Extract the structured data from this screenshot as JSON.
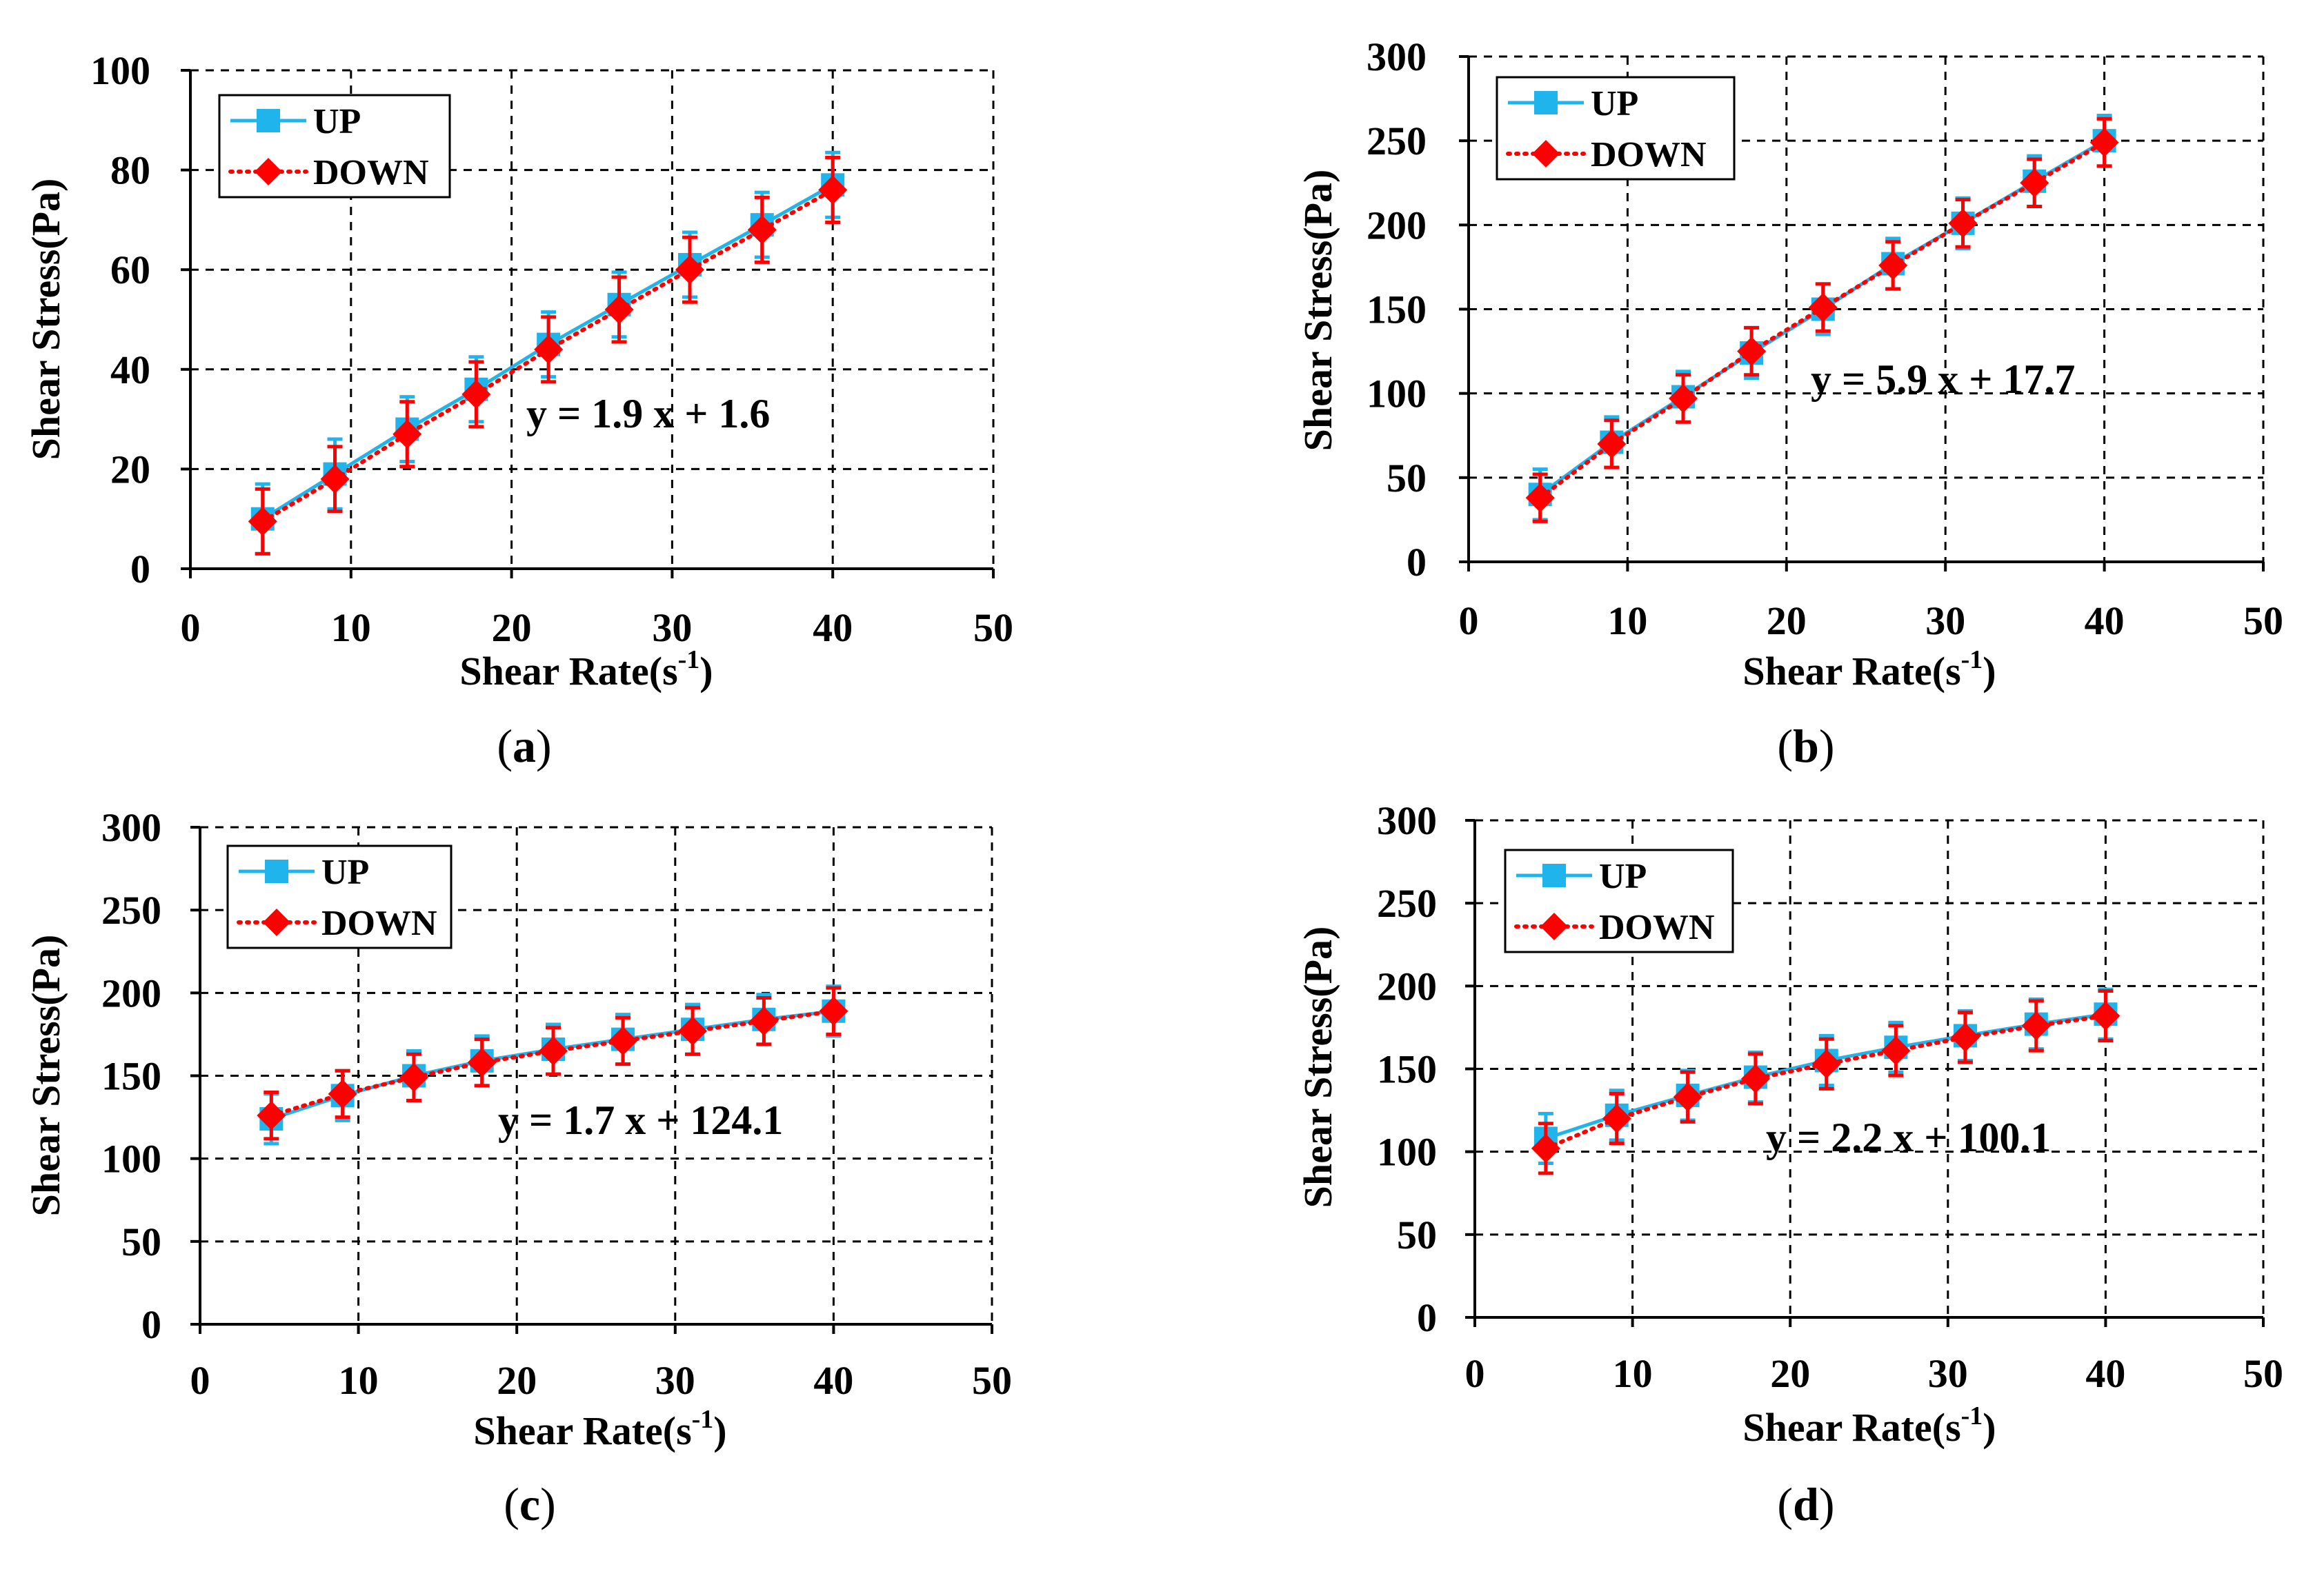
{
  "colors": {
    "up": "#1fb4ec",
    "down": "#ff0000",
    "error_up": "#1fb4ec",
    "error_down": "#ff0000",
    "grid": "#000000"
  },
  "chart_data": [
    {
      "type": "line",
      "caption": "(a)",
      "caption_letter": "a",
      "xlabel": "Shear Rate(s",
      "xlabel_sup": "-1",
      "xlabel_close": ")",
      "ylabel": "Shear Stress(Pa)",
      "xlim": [
        0,
        50
      ],
      "ylim": [
        0,
        100
      ],
      "xticks": [
        0,
        10,
        20,
        30,
        40,
        50
      ],
      "yticks": [
        0,
        20,
        40,
        60,
        80,
        100
      ],
      "grid": true,
      "legend_position": "top-left",
      "equation": "y = 1.9 x + 1.6",
      "x": [
        4.5,
        9,
        13.5,
        17.8,
        22.3,
        26.7,
        31.1,
        35.6,
        40
      ],
      "series": [
        {
          "name": "UP",
          "marker": "square",
          "line": "solid",
          "values": [
            10,
            19,
            28,
            36,
            45,
            53,
            61,
            69,
            77
          ],
          "errors": [
            7,
            7,
            6.5,
            6.5,
            6.5,
            6.5,
            6.5,
            6.5,
            6.5
          ]
        },
        {
          "name": "DOWN",
          "marker": "diamond",
          "line": "dotted",
          "values": [
            9.5,
            18,
            27,
            35,
            44,
            52,
            60,
            68,
            76
          ],
          "errors": [
            6.5,
            6.5,
            6.5,
            6.5,
            6.5,
            6.5,
            6.5,
            6.5,
            6.5
          ]
        }
      ]
    },
    {
      "type": "line",
      "caption": "(b)",
      "caption_letter": "b",
      "xlabel": "Shear Rate(s",
      "xlabel_sup": "-1",
      "xlabel_close": ")",
      "ylabel": "Shear Stress(Pa)",
      "xlim": [
        0,
        50
      ],
      "ylim": [
        0,
        300
      ],
      "xticks": [
        0,
        10,
        20,
        30,
        40,
        50
      ],
      "yticks": [
        0,
        50,
        100,
        150,
        200,
        250,
        300
      ],
      "grid": true,
      "legend_position": "top-left",
      "equation": "y = 5.9 x + 17.7",
      "x": [
        4.5,
        9,
        13.5,
        17.8,
        22.3,
        26.7,
        31.1,
        35.6,
        40
      ],
      "series": [
        {
          "name": "UP",
          "marker": "square",
          "line": "solid",
          "values": [
            40,
            71,
            98,
            124,
            150,
            177,
            201,
            226,
            250
          ],
          "errors": [
            15,
            15,
            15,
            15,
            15,
            15,
            15,
            15,
            15
          ]
        },
        {
          "name": "DOWN",
          "marker": "diamond",
          "line": "dotted",
          "values": [
            38,
            70,
            97,
            125,
            151,
            176,
            201,
            225,
            249
          ],
          "errors": [
            14,
            14,
            14,
            14,
            14,
            14,
            14,
            14,
            14
          ]
        }
      ]
    },
    {
      "type": "line",
      "caption": "(c)",
      "caption_letter": "c",
      "xlabel": "Shear Rate(s",
      "xlabel_sup": "-1",
      "xlabel_close": ")",
      "ylabel": "Shear Stress(Pa)",
      "xlim": [
        0,
        50
      ],
      "ylim": [
        0,
        300
      ],
      "xticks": [
        0,
        10,
        20,
        30,
        40,
        50
      ],
      "yticks": [
        0,
        50,
        100,
        150,
        200,
        250,
        300
      ],
      "grid": true,
      "legend_position": "top-left",
      "equation": "y = 1.7 x + 124.1",
      "x": [
        4.5,
        9,
        13.5,
        17.8,
        22.3,
        26.7,
        31.1,
        35.6,
        40
      ],
      "series": [
        {
          "name": "UP",
          "marker": "square",
          "line": "solid",
          "values": [
            124,
            138,
            150,
            159,
            166,
            172,
            178,
            184,
            189
          ],
          "errors": [
            15,
            15,
            15,
            15,
            15,
            15,
            15,
            15,
            15
          ]
        },
        {
          "name": "DOWN",
          "marker": "diamond",
          "line": "dotted",
          "values": [
            126,
            139,
            149,
            158,
            165,
            171,
            177,
            183,
            189
          ],
          "errors": [
            14,
            14,
            14,
            14,
            14,
            14,
            14,
            14,
            14
          ]
        }
      ]
    },
    {
      "type": "line",
      "caption": "(d)",
      "caption_letter": "d",
      "xlabel": "Shear Rate(s",
      "xlabel_sup": "-1",
      "xlabel_close": ")",
      "ylabel": "Shear Stress(Pa)",
      "xlim": [
        0,
        50
      ],
      "ylim": [
        0,
        300
      ],
      "xticks": [
        0,
        10,
        20,
        30,
        40,
        50
      ],
      "yticks": [
        0,
        50,
        100,
        150,
        200,
        250,
        300
      ],
      "grid": true,
      "legend_position": "top-left",
      "equation": "y = 2.2 x + 100.1",
      "x": [
        4.5,
        9,
        13.5,
        17.8,
        22.3,
        26.7,
        31.1,
        35.6,
        40
      ],
      "series": [
        {
          "name": "UP",
          "marker": "square",
          "line": "solid",
          "values": [
            108,
            122,
            134,
            145,
            155,
            163,
            170,
            177,
            183
          ],
          "errors": [
            15,
            15,
            15,
            15,
            15,
            15,
            15,
            15,
            15
          ]
        },
        {
          "name": "DOWN",
          "marker": "diamond",
          "line": "dotted",
          "values": [
            102,
            120,
            133,
            144,
            153,
            161,
            169,
            176,
            182
          ],
          "errors": [
            15,
            15,
            15,
            15,
            15,
            15,
            15,
            15,
            15
          ]
        }
      ]
    }
  ]
}
